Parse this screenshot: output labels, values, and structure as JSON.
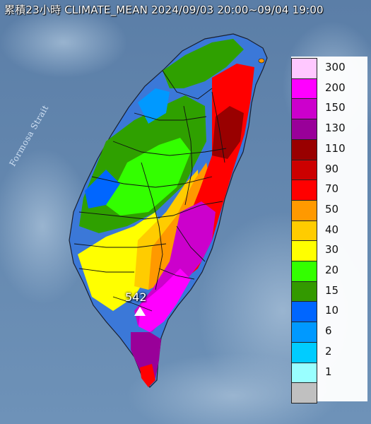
{
  "title": "累積23小時 CLIMATE_MEAN 2024/09/03 20:00~09/04 19:00",
  "map_label": "Formosa Strait",
  "peak_value": "542",
  "legend": [
    {
      "label": "300",
      "color": "#ffc8ff"
    },
    {
      "label": "200",
      "color": "#ff00ff"
    },
    {
      "label": "150",
      "color": "#cc00cc"
    },
    {
      "label": "130",
      "color": "#990099"
    },
    {
      "label": "110",
      "color": "#990000"
    },
    {
      "label": "90",
      "color": "#cc0000"
    },
    {
      "label": "70",
      "color": "#ff0000"
    },
    {
      "label": "50",
      "color": "#ff9900"
    },
    {
      "label": "40",
      "color": "#ffcc00"
    },
    {
      "label": "30",
      "color": "#ffff00"
    },
    {
      "label": "20",
      "color": "#33ff00"
    },
    {
      "label": "15",
      "color": "#339900"
    },
    {
      "label": "10",
      "color": "#0066ff"
    },
    {
      "label": "6",
      "color": "#0099ff"
    },
    {
      "label": "2",
      "color": "#00ccff"
    },
    {
      "label": "1",
      "color": "#99ffff"
    },
    {
      "label": "",
      "color": "#c0c0c0"
    }
  ]
}
